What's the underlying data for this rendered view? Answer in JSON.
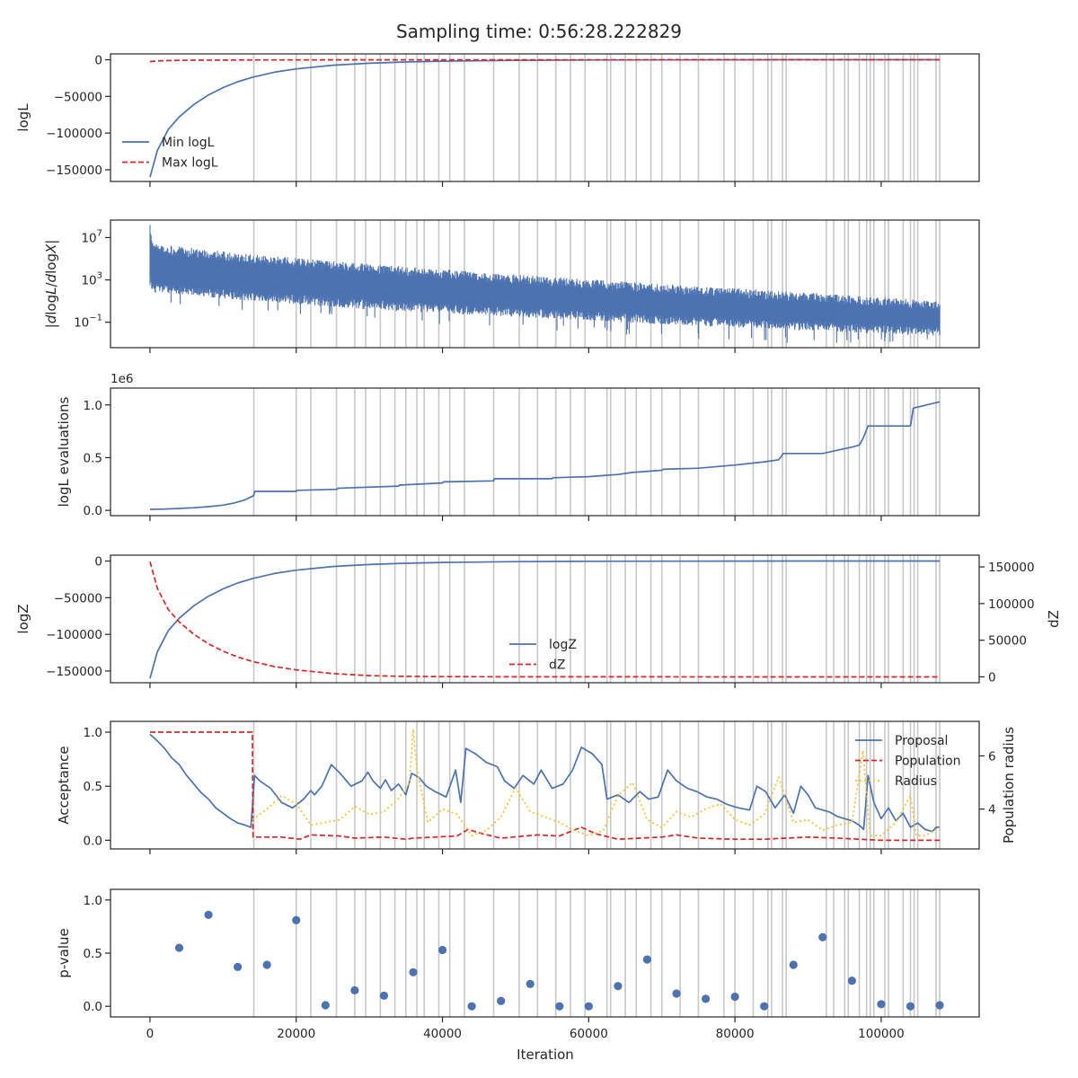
{
  "figure": {
    "title": "Sampling time: 0:56:28.222829",
    "xlabel": "Iteration",
    "x_ticks": [
      "0",
      "20000",
      "40000",
      "60000",
      "80000",
      "100000"
    ]
  },
  "colors": {
    "blue": "#4c72b0",
    "red": "#d62728",
    "gold": "#f2c12e",
    "vline": "#c8c8c8",
    "axes": "#262626"
  },
  "chart_data": [
    {
      "type": "line",
      "ylabel": "logL",
      "xlim": [
        -5400,
        113400
      ],
      "ylim": [
        -166000,
        8000
      ],
      "y_ticks": [
        {
          "v": 0,
          "label": "0"
        },
        {
          "v": -50000,
          "label": "−50000"
        },
        {
          "v": -100000,
          "label": "−100000"
        },
        {
          "v": -150000,
          "label": "−150000"
        }
      ],
      "legend": {
        "position": "lower-left",
        "labels": [
          "Min logL",
          "Max logL"
        ]
      },
      "series": [
        {
          "name": "Min logL",
          "style": "solid",
          "color": "blue",
          "x": [
            0,
            1000,
            2500,
            4000,
            6000,
            8000,
            10000,
            12000,
            14000,
            17000,
            20000,
            25000,
            30000,
            35000,
            40000,
            50000,
            60000,
            70000,
            80000,
            90000,
            100000,
            108000
          ],
          "y": [
            -160000,
            -124000,
            -95000,
            -78000,
            -61000,
            -48000,
            -38000,
            -30000,
            -24000,
            -17000,
            -12500,
            -7500,
            -4700,
            -3000,
            -1900,
            -800,
            -350,
            -150,
            -60,
            -25,
            -10,
            -5
          ]
        },
        {
          "name": "Max logL",
          "style": "dashed",
          "color": "red",
          "x": [
            0,
            1000,
            3000,
            6000,
            10000,
            15000,
            20000,
            30000,
            50000,
            80000,
            108000
          ],
          "y": [
            -2500,
            -1500,
            -900,
            -600,
            -400,
            -250,
            -150,
            -80,
            -30,
            -10,
            -5
          ]
        }
      ]
    },
    {
      "type": "line",
      "ylabel": "|dlogL/dlogX|",
      "scale": "log",
      "xlim": [
        -5400,
        113400
      ],
      "ylim": [
        -3.4,
        8.65
      ],
      "y_ticks": [
        {
          "v": 7,
          "base": "10",
          "exp": "7"
        },
        {
          "v": 3,
          "base": "10",
          "exp": "3"
        },
        {
          "v": -1,
          "base": "10",
          "exp": "−1"
        }
      ],
      "series": [
        {
          "name": "",
          "style": "band",
          "color": "blue",
          "x": [
            0,
            500,
            14000,
            30000,
            50000,
            70000,
            90000,
            108000
          ],
          "log10_upper": [
            8.2,
            6.4,
            5.4,
            4.5,
            3.5,
            2.6,
            1.8,
            1.0
          ],
          "log10_lower": [
            2.5,
            1.8,
            1.0,
            0.2,
            -0.5,
            -1.2,
            -1.8,
            -2.3
          ],
          "log10_spike_min": [
            1.5,
            0.8,
            0.0,
            -0.8,
            -1.6,
            -2.4,
            -3.1,
            -2.8
          ]
        }
      ]
    },
    {
      "type": "line",
      "ylabel": "logL evaluations",
      "offset_label": "1e6",
      "xlim": [
        -5400,
        113400
      ],
      "ylim": [
        -0.05,
        1.16
      ],
      "y_ticks": [
        {
          "v": 0,
          "label": "0.0"
        },
        {
          "v": 0.5,
          "label": "0.5"
        },
        {
          "v": 1,
          "label": "1.0"
        }
      ],
      "series": [
        {
          "name": "",
          "style": "solid",
          "color": "blue",
          "x": [
            0,
            2000,
            4000,
            6000,
            8000,
            10000,
            11500,
            13000,
            14200,
            14300,
            20000,
            20100,
            25600,
            25700,
            34000,
            34100,
            40000,
            40100,
            47000,
            47100,
            55000,
            55100,
            60000,
            62000,
            64000,
            66000,
            70000,
            70200,
            75000,
            80000,
            84000,
            86000,
            86600,
            92000,
            94000,
            96000,
            97000,
            97500,
            98200,
            104000,
            104400,
            108000
          ],
          "y": [
            0.01,
            0.012,
            0.018,
            0.025,
            0.035,
            0.05,
            0.07,
            0.1,
            0.14,
            0.18,
            0.18,
            0.19,
            0.2,
            0.21,
            0.23,
            0.24,
            0.26,
            0.27,
            0.28,
            0.3,
            0.3,
            0.31,
            0.32,
            0.33,
            0.34,
            0.36,
            0.38,
            0.39,
            0.4,
            0.43,
            0.46,
            0.48,
            0.54,
            0.54,
            0.57,
            0.6,
            0.62,
            0.68,
            0.8,
            0.8,
            0.97,
            1.03
          ]
        }
      ]
    },
    {
      "type": "line",
      "ylabel": "logZ",
      "ylabel_right": "dZ",
      "xlim": [
        -5400,
        113400
      ],
      "ylim": [
        -166000,
        8000
      ],
      "ylim_right": [
        -8000,
        166000
      ],
      "y_ticks": [
        {
          "v": 0,
          "label": "0"
        },
        {
          "v": -50000,
          "label": "−50000"
        },
        {
          "v": -100000,
          "label": "−100000"
        },
        {
          "v": -150000,
          "label": "−150000"
        }
      ],
      "y_ticks_right": [
        {
          "v": 150000,
          "label": "150000"
        },
        {
          "v": 100000,
          "label": "100000"
        },
        {
          "v": 50000,
          "label": "50000"
        },
        {
          "v": 0,
          "label": "0"
        }
      ],
      "legend": {
        "position": "lower-center",
        "labels": [
          "logZ",
          "dZ"
        ]
      },
      "series": [
        {
          "name": "logZ",
          "style": "solid",
          "color": "blue",
          "axis": "left",
          "x": [
            0,
            1000,
            2500,
            4000,
            6000,
            8000,
            10000,
            12000,
            14000,
            17000,
            20000,
            25000,
            30000,
            35000,
            40000,
            50000,
            60000,
            70000,
            80000,
            90000,
            100000,
            108000
          ],
          "y": [
            -160000,
            -124000,
            -95000,
            -78000,
            -61000,
            -48000,
            -38000,
            -30000,
            -24000,
            -17000,
            -12500,
            -7500,
            -4700,
            -3000,
            -1900,
            -800,
            -350,
            -150,
            -60,
            -25,
            -10,
            -5
          ]
        },
        {
          "name": "dZ",
          "style": "dashed",
          "color": "red",
          "axis": "right",
          "x": [
            0,
            1000,
            2500,
            4000,
            6000,
            8000,
            10000,
            12000,
            14000,
            17000,
            20000,
            25000,
            30000,
            35000,
            40000,
            50000,
            60000,
            70000,
            80000,
            90000,
            100000,
            108000
          ],
          "y": [
            157000,
            121000,
            92000,
            75000,
            58000,
            45000,
            35000,
            27000,
            21000,
            14000,
            9500,
            4500,
            1700,
            700,
            300,
            100,
            50,
            30,
            20,
            10,
            5,
            2
          ]
        }
      ]
    },
    {
      "type": "line",
      "ylabel": "Acceptance",
      "ylabel_right": "Population radius",
      "xlim": [
        -5400,
        113400
      ],
      "ylim": [
        -0.08,
        1.1
      ],
      "ylim_right": [
        2.5,
        7.3
      ],
      "y_ticks": [
        {
          "v": 0,
          "label": "0.0"
        },
        {
          "v": 0.5,
          "label": "0.5"
        },
        {
          "v": 1,
          "label": "1.0"
        }
      ],
      "y_ticks_right": [
        {
          "v": 6,
          "label": "6"
        },
        {
          "v": 4,
          "label": "4"
        }
      ],
      "legend": {
        "position": "upper-right",
        "labels": [
          "Proposal",
          "Population",
          "Radius"
        ]
      },
      "series": [
        {
          "name": "Proposal",
          "style": "solid",
          "color": "blue",
          "axis": "left",
          "x": [
            0,
            1000,
            2000,
            3000,
            4000,
            5000,
            6000,
            7000,
            8000,
            9000,
            10000,
            11000,
            12000,
            13000,
            13800,
            14300,
            15000,
            16500,
            18000,
            19500,
            21000,
            22000,
            22500,
            23500,
            24800,
            26000,
            27500,
            29000,
            29800,
            30500,
            31500,
            32200,
            33000,
            34000,
            35000,
            35800,
            36800,
            37800,
            39000,
            40500,
            41800,
            42500,
            43200,
            44500,
            46000,
            47500,
            48500,
            49800,
            51000,
            52500,
            53500,
            55000,
            56500,
            57800,
            59000,
            60500,
            61800,
            62500,
            64000,
            65500,
            67000,
            68200,
            69500,
            70800,
            72000,
            73500,
            74800,
            76200,
            77500,
            79000,
            80500,
            82000,
            83000,
            84200,
            85500,
            86800,
            88000,
            89000,
            90000,
            91000,
            92000,
            93000,
            94000,
            95000,
            96000,
            97000,
            97600,
            98200,
            99000,
            100000,
            101000,
            102000,
            103000,
            104000,
            105000,
            106000,
            107000,
            107500,
            108000
          ],
          "y": [
            0.98,
            0.92,
            0.85,
            0.76,
            0.7,
            0.6,
            0.52,
            0.44,
            0.38,
            0.3,
            0.25,
            0.2,
            0.16,
            0.14,
            0.12,
            0.6,
            0.55,
            0.48,
            0.35,
            0.3,
            0.38,
            0.46,
            0.42,
            0.5,
            0.7,
            0.62,
            0.5,
            0.55,
            0.63,
            0.55,
            0.48,
            0.56,
            0.46,
            0.52,
            0.42,
            0.62,
            0.58,
            0.5,
            0.45,
            0.4,
            0.65,
            0.35,
            0.85,
            0.8,
            0.72,
            0.68,
            0.55,
            0.48,
            0.6,
            0.52,
            0.65,
            0.48,
            0.52,
            0.65,
            0.86,
            0.8,
            0.7,
            0.38,
            0.42,
            0.35,
            0.45,
            0.38,
            0.4,
            0.65,
            0.55,
            0.48,
            0.45,
            0.4,
            0.38,
            0.33,
            0.3,
            0.28,
            0.5,
            0.45,
            0.3,
            0.42,
            0.25,
            0.5,
            0.42,
            0.3,
            0.28,
            0.26,
            0.22,
            0.2,
            0.18,
            0.14,
            0.1,
            0.6,
            0.35,
            0.2,
            0.3,
            0.18,
            0.25,
            0.12,
            0.16,
            0.1,
            0.08,
            0.12,
            0.12
          ]
        },
        {
          "name": "Population",
          "style": "dashed",
          "color": "red",
          "axis": "left",
          "x": [
            0,
            14000,
            14100,
            18000,
            20500,
            22000,
            26000,
            28000,
            32000,
            35000,
            36000,
            42000,
            43500,
            45500,
            48000,
            53000,
            56000,
            57500,
            59000,
            61000,
            64000,
            67000,
            70000,
            72000,
            75000,
            80000,
            84000,
            87000,
            90000,
            94000,
            100000,
            104000,
            108000
          ],
          "y": [
            1.0,
            1.0,
            0.03,
            0.03,
            0.01,
            0.05,
            0.04,
            0.02,
            0.03,
            0.01,
            0.02,
            0.04,
            0.1,
            0.06,
            0.02,
            0.05,
            0.04,
            0.08,
            0.12,
            0.06,
            0.01,
            0.02,
            0.03,
            0.05,
            0.02,
            0.01,
            0.01,
            0.02,
            0.03,
            0.02,
            0.0,
            0.0,
            0.0
          ]
        },
        {
          "name": "Radius",
          "style": "dotted",
          "color": "gold",
          "axis": "right",
          "x": [
            14000,
            16000,
            18000,
            20000,
            22000,
            24000,
            26000,
            28000,
            30000,
            32000,
            34000,
            35500,
            36000,
            36500,
            38000,
            40000,
            42000,
            44000,
            46000,
            48000,
            50000,
            52000,
            54000,
            56000,
            58000,
            60000,
            62000,
            64000,
            66000,
            68000,
            70000,
            72000,
            74000,
            76000,
            78000,
            80000,
            82000,
            84000,
            86000,
            88000,
            90000,
            92000,
            94000,
            96000,
            97500,
            98500,
            100000,
            102000,
            104000,
            104800,
            106000,
            108000
          ],
          "y": [
            3.6,
            4.0,
            4.5,
            4.2,
            3.4,
            3.5,
            3.6,
            4.1,
            3.8,
            3.9,
            4.4,
            5.0,
            7.0,
            5.5,
            3.5,
            4.0,
            3.8,
            3.0,
            3.2,
            3.7,
            4.8,
            3.9,
            3.7,
            3.5,
            3.2,
            3.0,
            3.2,
            4.5,
            5.0,
            3.6,
            3.3,
            3.9,
            3.7,
            4.0,
            4.2,
            3.6,
            3.4,
            3.8,
            5.2,
            3.5,
            3.6,
            3.2,
            3.4,
            3.5,
            6.2,
            3.0,
            3.0,
            3.5,
            4.5,
            3.0,
            3.0,
            3.3
          ]
        }
      ]
    },
    {
      "type": "scatter",
      "ylabel": "p-value",
      "xlim": [
        -5400,
        113400
      ],
      "ylim": [
        -0.1,
        1.1
      ],
      "y_ticks": [
        {
          "v": 0,
          "label": "0.0"
        },
        {
          "v": 0.5,
          "label": "0.5"
        },
        {
          "v": 1,
          "label": "1.0"
        }
      ],
      "series": [
        {
          "name": "",
          "style": "points",
          "color": "blue",
          "x": [
            4000,
            8000,
            12000,
            16000,
            20000,
            24000,
            28000,
            32000,
            36000,
            40000,
            44000,
            48000,
            52000,
            56000,
            60000,
            64000,
            68000,
            72000,
            76000,
            80000,
            84000,
            88000,
            92000,
            96000,
            100000,
            104000,
            108000
          ],
          "y": [
            0.55,
            0.86,
            0.37,
            0.39,
            0.81,
            0.01,
            0.15,
            0.1,
            0.32,
            0.53,
            0.0,
            0.05,
            0.21,
            0.0,
            0.0,
            0.19,
            0.44,
            0.12,
            0.07,
            0.09,
            0.0,
            0.39,
            0.65,
            0.24,
            0.02,
            0.0,
            0.01
          ]
        }
      ]
    }
  ],
  "vlines_x": [
    14200,
    20000,
    22000,
    25500,
    28000,
    29500,
    31500,
    33500,
    35000,
    36500,
    37500,
    39500,
    41000,
    43000,
    47000,
    50500,
    53000,
    55500,
    57500,
    59500,
    62500,
    63000,
    65000,
    66500,
    68500,
    70000,
    72500,
    75000,
    78500,
    80000,
    82500,
    84500,
    85000,
    86500,
    87000,
    92500,
    93500,
    95000,
    95500,
    97000,
    98000,
    98500,
    99000,
    100500,
    101000,
    103000,
    104000,
    104500,
    105000,
    107500,
    108000
  ]
}
